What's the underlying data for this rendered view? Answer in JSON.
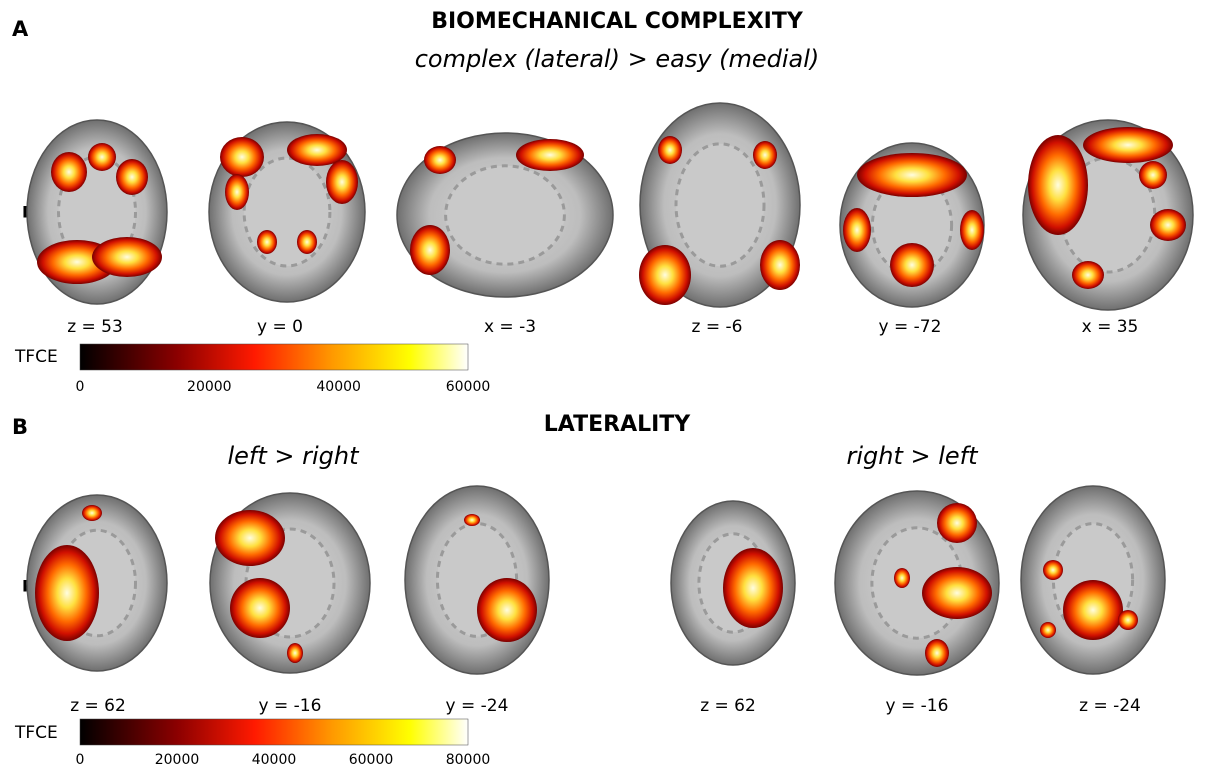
{
  "panel_a": {
    "letter": "A",
    "title": "BIOMECHANICAL COMPLEXITY",
    "subtitle": "complex (lateral) > easy (medial)",
    "side_label": "R",
    "slices": [
      "z = 53",
      "y = 0",
      "x = -3",
      "z = -6",
      "y = -72",
      "x = 35"
    ],
    "colorbar": {
      "label": "TFCE",
      "ticks": [
        "0",
        "20000",
        "40000",
        "60000"
      ]
    }
  },
  "panel_b": {
    "letter": "B",
    "title": "LATERALITY",
    "side_label": "R",
    "groups": [
      {
        "subtitle": "left > right",
        "slices": [
          "z = 62",
          "y = -16",
          "y = -24"
        ]
      },
      {
        "subtitle": "right > left",
        "slices": [
          "z = 62",
          "y = -16",
          "z = -24"
        ]
      }
    ],
    "colorbar": {
      "label": "TFCE",
      "ticks": [
        "0",
        "20000",
        "40000",
        "60000",
        "80000"
      ]
    }
  }
}
